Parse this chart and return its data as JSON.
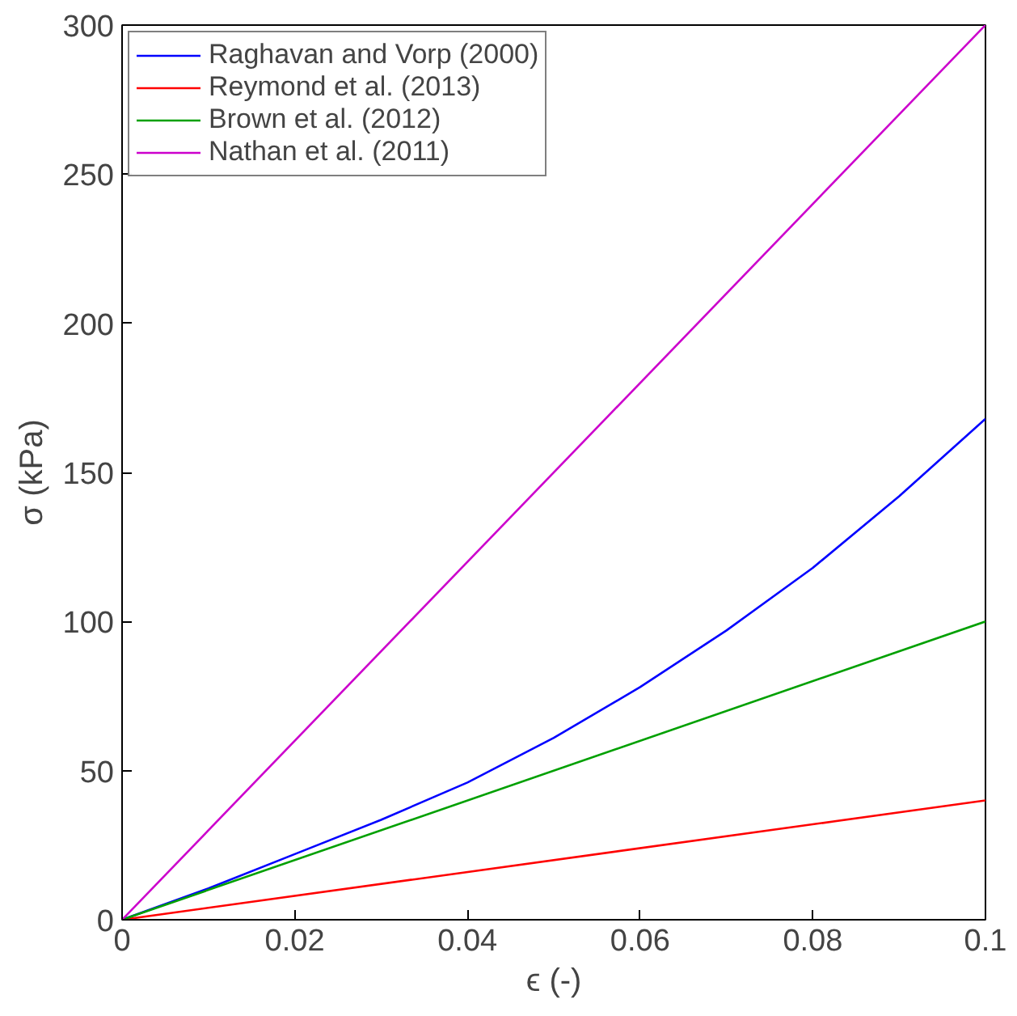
{
  "chart_data": {
    "type": "line",
    "xlabel": "ϵ (-)",
    "ylabel": "σ (kPa)",
    "xlim": [
      0,
      0.1
    ],
    "ylim": [
      0,
      300
    ],
    "xticks": [
      0,
      0.02,
      0.04,
      0.06,
      0.08,
      0.1
    ],
    "yticks": [
      0,
      50,
      100,
      150,
      200,
      250,
      300
    ],
    "grid": false,
    "legend": "top left",
    "marker": "none",
    "line_style": "solid",
    "series": [
      {
        "name": "Raghavan and Vorp (2000)",
        "color": "#0000ff",
        "x": [
          0,
          0.01,
          0.02,
          0.03,
          0.04,
          0.05,
          0.06,
          0.07,
          0.08,
          0.09,
          0.1
        ],
        "values": [
          0,
          10.5,
          22,
          33.5,
          46,
          61,
          78,
          97,
          118,
          142,
          168
        ]
      },
      {
        "name": "Reymond et al. (2013)",
        "color": "#ff0000",
        "x": [
          0,
          0.1
        ],
        "values": [
          0,
          40
        ]
      },
      {
        "name": "Brown et al. (2012)",
        "color": "#00a000",
        "x": [
          0,
          0.1
        ],
        "values": [
          0,
          100
        ]
      },
      {
        "name": "Nathan et al. (2011)",
        "color": "#cc00cc",
        "x": [
          0,
          0.1
        ],
        "values": [
          0,
          300
        ]
      }
    ]
  }
}
